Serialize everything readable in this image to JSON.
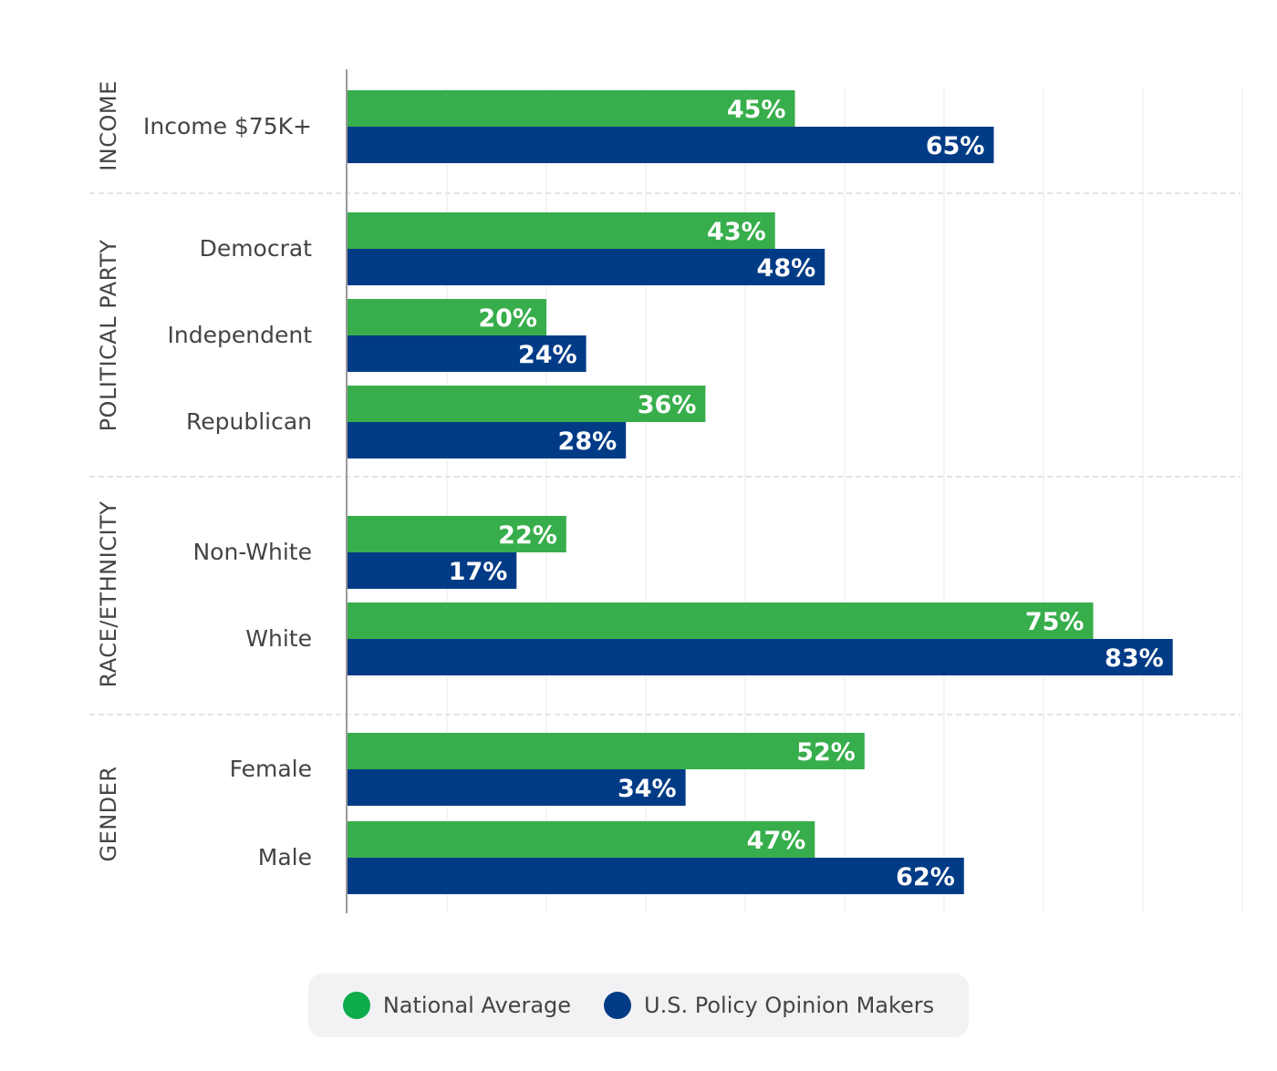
{
  "chart_data": {
    "type": "bar",
    "orientation": "horizontal",
    "xlim": [
      0,
      90
    ],
    "grid": true,
    "legend_position": "bottom",
    "colors": {
      "National Average": "#37ae4b",
      "U.S. Policy Opinion Makers": "#013b86"
    },
    "series_names": [
      "National Average",
      "U.S. Policy Opinion Makers"
    ],
    "groups": [
      {
        "name": "INCOME",
        "categories": [
          {
            "label": "Income $75K+",
            "values": [
              45,
              65
            ],
            "value_labels": [
              "45%",
              "65%"
            ]
          }
        ]
      },
      {
        "name": "POLITICAL PARTY",
        "categories": [
          {
            "label": "Democrat",
            "values": [
              43,
              48
            ],
            "value_labels": [
              "43%",
              "48%"
            ]
          },
          {
            "label": "Independent",
            "values": [
              20,
              24
            ],
            "value_labels": [
              "20%",
              "24%"
            ]
          },
          {
            "label": "Republican",
            "values": [
              36,
              28
            ],
            "value_labels": [
              "36%",
              "28%"
            ]
          }
        ]
      },
      {
        "name": "RACE/ETHNICITY",
        "categories": [
          {
            "label": "Non-White",
            "values": [
              22,
              17
            ],
            "value_labels": [
              "22%",
              "17%"
            ]
          },
          {
            "label": "White",
            "values": [
              75,
              83
            ],
            "value_labels": [
              "75%",
              "83%"
            ]
          }
        ]
      },
      {
        "name": "GENDER",
        "categories": [
          {
            "label": "Female",
            "values": [
              52,
              34
            ],
            "value_labels": [
              "52%",
              "34%"
            ]
          },
          {
            "label": "Male",
            "values": [
              47,
              62
            ],
            "value_labels": [
              "47%",
              "62%"
            ]
          }
        ]
      }
    ]
  },
  "legend": [
    {
      "label": "National Average",
      "color": "#37ae4b"
    },
    {
      "label": "U.S. Policy Opinion Makers",
      "color": "#013b86"
    }
  ]
}
